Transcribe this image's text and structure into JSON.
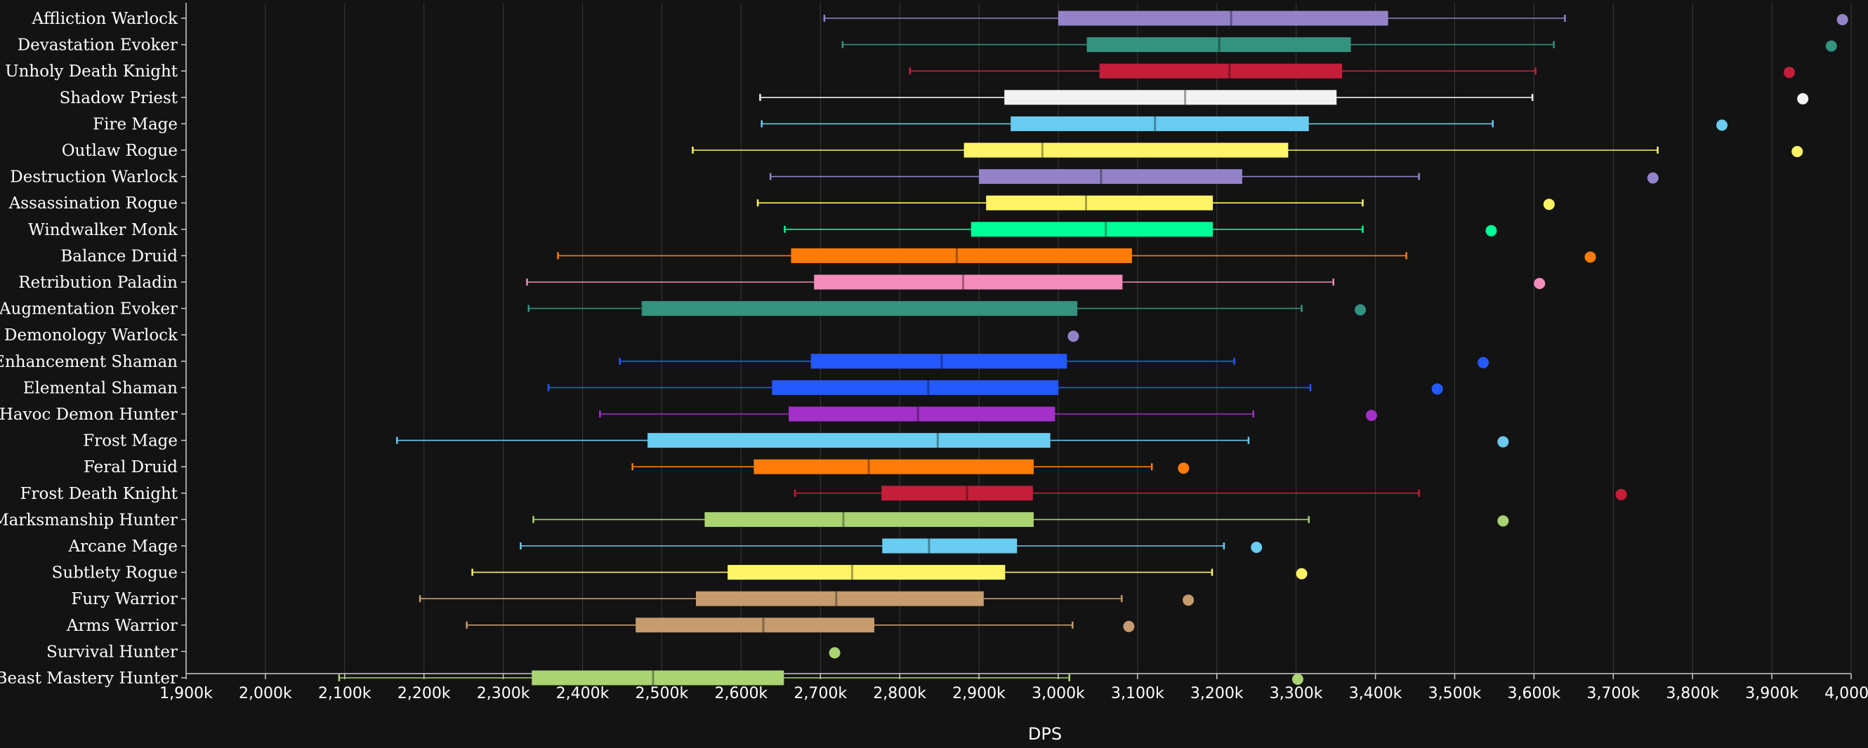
{
  "chart_data": {
    "type": "boxplot",
    "orientation": "horizontal",
    "title": "",
    "xlabel": "DPS",
    "ylabel": "",
    "xlim": [
      1900000,
      4000000
    ],
    "x_tick_values": [
      1900000,
      2000000,
      2100000,
      2200000,
      2300000,
      2400000,
      2500000,
      2600000,
      2700000,
      2800000,
      2900000,
      3000000,
      3100000,
      3200000,
      3300000,
      3400000,
      3500000,
      3600000,
      3700000,
      3800000,
      3900000,
      4000000
    ],
    "x_tick_labels": [
      "1,900k",
      "2,000k",
      "2,100k",
      "2,200k",
      "2,300k",
      "2,400k",
      "2,500k",
      "2,600k",
      "2,700k",
      "2,800k",
      "2,900k",
      "3,000k",
      "3,100k",
      "3,200k",
      "3,300k",
      "3,400k",
      "3,500k",
      "3,600k",
      "3,700k",
      "3,800k",
      "3,900k",
      "4,000k"
    ],
    "grid": "vertical",
    "legend": "none",
    "series": [
      {
        "name": "Affliction Warlock",
        "color": "#9482c9",
        "min": 2705000,
        "q1": 3000000,
        "median": 3218000,
        "q3": 3416000,
        "max": 3639000,
        "outliers": [
          3989000
        ]
      },
      {
        "name": "Devastation Evoker",
        "color": "#33937f",
        "min": 2728000,
        "q1": 3036000,
        "median": 3203000,
        "q3": 3369000,
        "max": 3625000,
        "outliers": [
          3975000
        ]
      },
      {
        "name": "Unholy Death Knight",
        "color": "#c41e3a",
        "min": 2813000,
        "q1": 3052000,
        "median": 3216000,
        "q3": 3358000,
        "max": 3602000,
        "outliers": [
          3922000
        ]
      },
      {
        "name": "Shadow Priest",
        "color": "#f2f2f2",
        "min": 2624000,
        "q1": 2932000,
        "median": 3160000,
        "q3": 3351000,
        "max": 3598000,
        "outliers": [
          3939000
        ]
      },
      {
        "name": "Fire Mage",
        "color": "#69ccf0",
        "min": 2626000,
        "q1": 2940000,
        "median": 3122000,
        "q3": 3316000,
        "max": 3548000,
        "outliers": [
          3837000
        ]
      },
      {
        "name": "Outlaw Rogue",
        "color": "#fff468",
        "min": 2539000,
        "q1": 2881000,
        "median": 2980000,
        "q3": 3290000,
        "max": 3756000,
        "outliers": [
          3932000
        ]
      },
      {
        "name": "Destruction Warlock",
        "color": "#9482c9",
        "min": 2637000,
        "q1": 2900000,
        "median": 3054000,
        "q3": 3232000,
        "max": 3455000,
        "outliers": [
          3750000
        ]
      },
      {
        "name": "Assassination Rogue",
        "color": "#fff468",
        "min": 2621000,
        "q1": 2909000,
        "median": 3035000,
        "q3": 3195000,
        "max": 3384000,
        "outliers": [
          3619000
        ]
      },
      {
        "name": "Windwalker Monk",
        "color": "#00ff98",
        "min": 2655000,
        "q1": 2890000,
        "median": 3060000,
        "q3": 3195000,
        "max": 3384000,
        "outliers": [
          3546000
        ]
      },
      {
        "name": "Balance Druid",
        "color": "#ff7c0a",
        "min": 2369000,
        "q1": 2663000,
        "median": 2872000,
        "q3": 3093000,
        "max": 3439000,
        "outliers": [
          3671000
        ]
      },
      {
        "name": "Retribution Paladin",
        "color": "#f48cba",
        "min": 2330000,
        "q1": 2692000,
        "median": 2880000,
        "q3": 3081000,
        "max": 3347000,
        "outliers": [
          3607000
        ]
      },
      {
        "name": "Augmentation Evoker",
        "color": "#33937f",
        "min": 2332000,
        "q1": 2474000,
        "median": 2474000,
        "q3": 3024000,
        "max": 3307000,
        "outliers": [
          3381000
        ]
      },
      {
        "name": "Demonology Warlock",
        "color": "#9482c9",
        "min": 3019000,
        "q1": 3019000,
        "median": 3019000,
        "q3": 3019000,
        "max": 3019000,
        "outliers": [
          3019000
        ]
      },
      {
        "name": "Enhancement Shaman",
        "color": "#2359ff",
        "min": 2447000,
        "q1": 2688000,
        "median": 2853000,
        "q3": 3011000,
        "max": 3222000,
        "outliers": [
          3536000
        ]
      },
      {
        "name": "Elemental Shaman",
        "color": "#2359ff",
        "min": 2357000,
        "q1": 2639000,
        "median": 2836000,
        "q3": 3000000,
        "max": 3318000,
        "outliers": [
          3478000
        ]
      },
      {
        "name": "Havoc Demon Hunter",
        "color": "#a330c9",
        "min": 2422000,
        "q1": 2660000,
        "median": 2823000,
        "q3": 2996000,
        "max": 3246000,
        "outliers": [
          3395000
        ]
      },
      {
        "name": "Frost Mage",
        "color": "#69ccf0",
        "min": 2166000,
        "q1": 2482000,
        "median": 2848000,
        "q3": 2990000,
        "max": 3240000,
        "outliers": [
          3561000
        ]
      },
      {
        "name": "Feral Druid",
        "color": "#ff7c0a",
        "min": 2463000,
        "q1": 2616000,
        "median": 2761000,
        "q3": 2969000,
        "max": 3118000,
        "outliers": [
          3158000
        ]
      },
      {
        "name": "Frost Death Knight",
        "color": "#c41e3a",
        "min": 2668000,
        "q1": 2777000,
        "median": 2885000,
        "q3": 2968000,
        "max": 3455000,
        "outliers": [
          3710000
        ]
      },
      {
        "name": "Marksmanship Hunter",
        "color": "#aad372",
        "min": 2338000,
        "q1": 2554000,
        "median": 2729000,
        "q3": 2969000,
        "max": 3316000,
        "outliers": [
          3561000
        ]
      },
      {
        "name": "Arcane Mage",
        "color": "#69ccf0",
        "min": 2322000,
        "q1": 2778000,
        "median": 2837000,
        "q3": 2948000,
        "max": 3209000,
        "outliers": [
          3250000
        ]
      },
      {
        "name": "Subtlety Rogue",
        "color": "#fff468",
        "min": 2261000,
        "q1": 2583000,
        "median": 2740000,
        "q3": 2933000,
        "max": 3194000,
        "outliers": [
          3307000
        ]
      },
      {
        "name": "Fury Warrior",
        "color": "#c69b6d",
        "min": 2195000,
        "q1": 2543000,
        "median": 2720000,
        "q3": 2906000,
        "max": 3080000,
        "outliers": [
          3164000
        ]
      },
      {
        "name": "Arms Warrior",
        "color": "#c69b6d",
        "min": 2254000,
        "q1": 2467000,
        "median": 2628000,
        "q3": 2768000,
        "max": 3018000,
        "outliers": [
          3089000
        ]
      },
      {
        "name": "Survival Hunter",
        "color": "#aad372",
        "min": 2718000,
        "q1": 2718000,
        "median": 2718000,
        "q3": 2718000,
        "max": 2718000,
        "outliers": [
          2718000
        ]
      },
      {
        "name": "Beast Mastery Hunter",
        "color": "#aad372",
        "min": 2093000,
        "q1": 2336000,
        "median": 2489000,
        "q3": 2654000,
        "max": 3014000,
        "outliers": [
          3302000
        ]
      }
    ]
  }
}
